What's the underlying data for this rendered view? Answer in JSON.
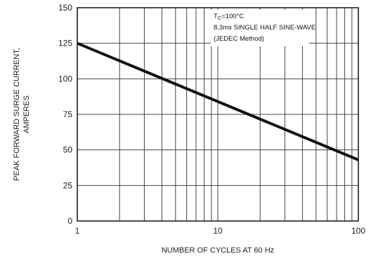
{
  "chart_data": {
    "type": "line",
    "title": "",
    "xlabel": "NUMBER OF CYCLES AT 60 Hz",
    "ylabel": [
      "PEAK FORWARD SURGE CURRENT,",
      "AMPERES"
    ],
    "x_scale": "log",
    "xlim": [
      1,
      100
    ],
    "ylim": [
      0,
      150
    ],
    "x_ticks": [
      1,
      10,
      100
    ],
    "x_tick_labels": [
      "1",
      "10",
      "100"
    ],
    "y_ticks": [
      0,
      25,
      50,
      75,
      100,
      125,
      150
    ],
    "y_tick_labels": [
      "0",
      "25",
      "50",
      "75",
      "100",
      "125",
      "150"
    ],
    "grid": true,
    "series": [
      {
        "name": "",
        "x": [
          1,
          100
        ],
        "y": [
          125,
          43
        ],
        "color": "#111111"
      }
    ],
    "annotation": {
      "lines": [
        "TC=100°C",
        "8.3ms SINGLE HALF SINE-WAVE",
        "(JEDEC Method)"
      ],
      "placement": "top-right"
    }
  }
}
